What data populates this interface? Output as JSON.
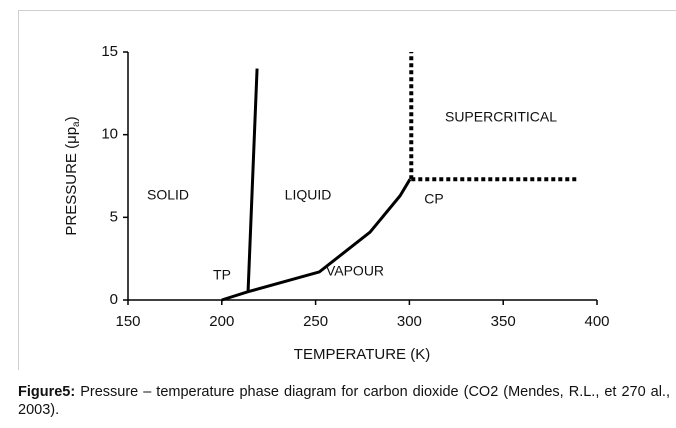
{
  "chart_data": {
    "type": "line",
    "xlabel": "TEMPERATURE (K)",
    "ylabel": "PRESSURE (μp",
    "ylabel_sub": "a",
    "ylabel_end": ")",
    "xlim": [
      150,
      400
    ],
    "xticks": [
      150,
      200,
      250,
      300,
      350,
      400
    ],
    "ylim": [
      0,
      15
    ],
    "yticks": [
      0,
      5,
      10,
      15
    ],
    "color": "#000000",
    "lines": [
      {
        "style": "solid",
        "x": [
          214,
          218.8
        ],
        "y": [
          0.5,
          14
        ]
      },
      {
        "style": "solid",
        "x": [
          200,
          214,
          252,
          279,
          295,
          300.3
        ],
        "y": [
          0,
          0.5,
          1.7,
          4.1,
          6.3,
          7.3
        ]
      },
      {
        "style": "dotted",
        "x": [
          301,
          301
        ],
        "y": [
          7.3,
          15
        ]
      },
      {
        "style": "dotted",
        "x": [
          301,
          390
        ],
        "y": [
          7.3,
          7.3
        ]
      }
    ],
    "annotations": [
      "SOLID",
      "LIQUID",
      "VAPOUR",
      "TP",
      "CP",
      "SUPERCRITICAL"
    ]
  },
  "caption": {
    "label": "Figure5:",
    "text": " Pressure – temperature phase diagram for carbon dioxide (CO2 (Mendes, R.L., et 270 al., 2003)."
  }
}
